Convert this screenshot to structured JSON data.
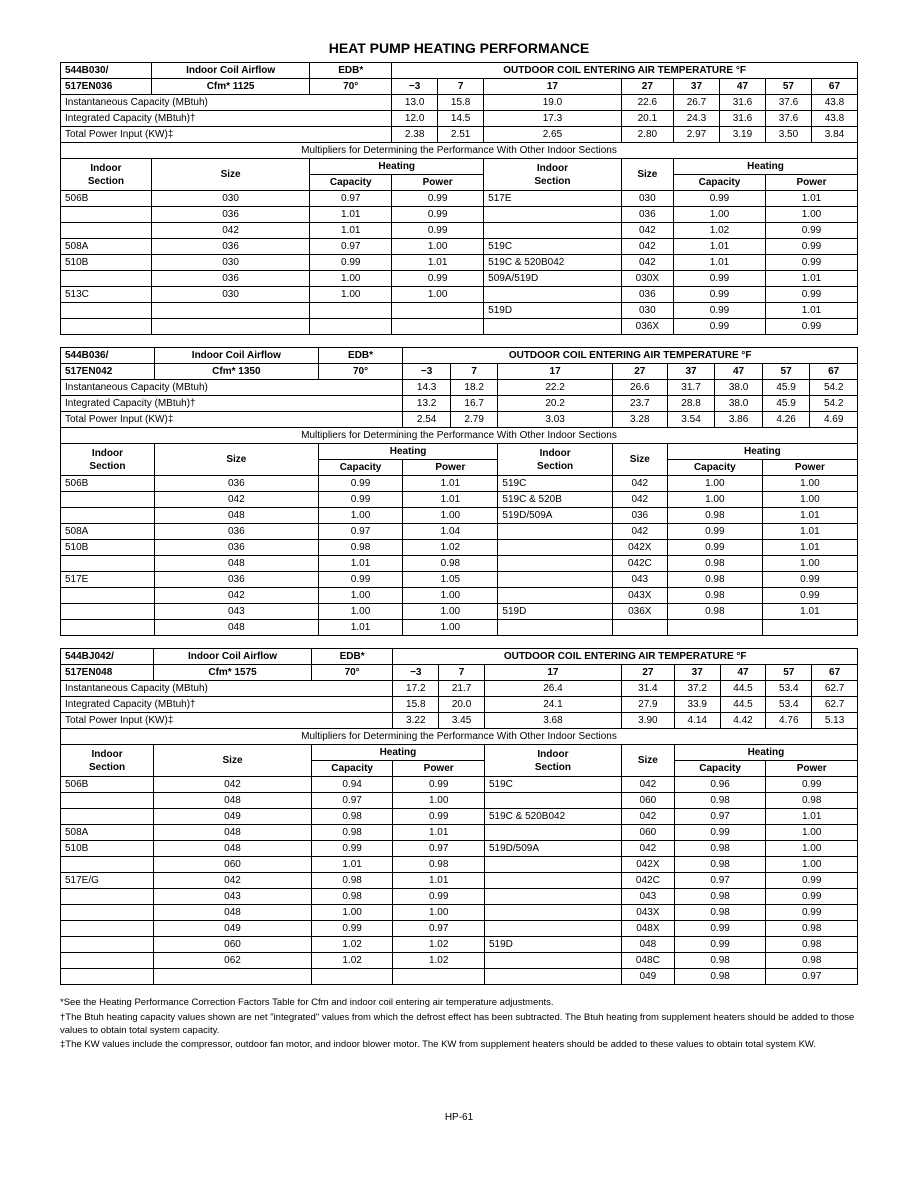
{
  "title": "HEAT PUMP HEATING PERFORMANCE",
  "pagenum": "HP-61",
  "footnotes": [
    "*See the Heating Performance Correction Factors Table for Cfm and indoor coil entering air temperature adjustments.",
    "†The Btuh heating capacity values shown are net \"integrated\" values from which the defrost effect has been subtracted. The Btuh heating from supplement heaters should be added to those values to obtain total system capacity.",
    "‡The KW values include the compressor, outdoor fan motor, and indoor blower motor. The KW from supplement heaters should be added to these values to obtain total system KW."
  ],
  "h": {
    "ica": "Indoor Coil Airflow",
    "edb": "EDB*",
    "oat": "OUTDOOR COIL ENTERING AIR TEMPERATURE °F",
    "temps": [
      "−3",
      "7",
      "17",
      "27",
      "37",
      "47",
      "57",
      "67"
    ],
    "inst": "Instantaneous Capacity (MBtuh)",
    "integ": "Integrated Capacity (MBtuh)†",
    "tpi": "Total Power Input (KW)‡",
    "mult": "Multipliers for Determining the Performance With Other Indoor Sections",
    "is": "Indoor",
    "sec": "Section",
    "size": "Size",
    "heat": "Heating",
    "cap": "Capacity",
    "pow": "Power",
    "deg": "70°"
  },
  "t1": {
    "model1": "544B030/",
    "model2": "517EN036",
    "cfm": "Cfm* 1125",
    "inst": [
      "13.0",
      "15.8",
      "19.0",
      "22.6",
      "26.7",
      "31.6",
      "37.6",
      "43.8"
    ],
    "integ": [
      "12.0",
      "14.5",
      "17.3",
      "20.1",
      "24.3",
      "31.6",
      "37.6",
      "43.8"
    ],
    "tpi": [
      "2.38",
      "2.51",
      "2.65",
      "2.80",
      "2.97",
      "3.19",
      "3.50",
      "3.84"
    ],
    "left": [
      [
        "506B",
        "030",
        "0.97",
        "0.99"
      ],
      [
        "",
        "036",
        "1.01",
        "0.99"
      ],
      [
        "",
        "042",
        "1.01",
        "0.99"
      ],
      [
        "508A",
        "036",
        "0.97",
        "1.00"
      ],
      [
        "510B",
        "030",
        "0.99",
        "1.01"
      ],
      [
        "",
        "036",
        "1.00",
        "0.99"
      ],
      [
        "513C",
        "030",
        "1.00",
        "1.00"
      ],
      [
        "",
        "",
        "",
        ""
      ]
    ],
    "right": [
      [
        "517E",
        "030",
        "0.99",
        "1.01"
      ],
      [
        "",
        "036",
        "1.00",
        "1.00"
      ],
      [
        "",
        "042",
        "1.02",
        "0.99"
      ],
      [
        "519C",
        "042",
        "1.01",
        "0.99"
      ],
      [
        "519C & 520B042",
        "042",
        "1.01",
        "0.99"
      ],
      [
        "509A/519D",
        "030X",
        "0.99",
        "1.01"
      ],
      [
        "",
        "036",
        "0.99",
        "0.99"
      ],
      [
        "519D",
        "030",
        "0.99",
        "1.01"
      ],
      [
        "",
        "036X",
        "0.99",
        "0.99"
      ]
    ]
  },
  "t2": {
    "model1": "544B036/",
    "model2": "517EN042",
    "cfm": "Cfm* 1350",
    "inst": [
      "14.3",
      "18.2",
      "22.2",
      "26.6",
      "31.7",
      "38.0",
      "45.9",
      "54.2"
    ],
    "integ": [
      "13.2",
      "16.7",
      "20.2",
      "23.7",
      "28.8",
      "38.0",
      "45.9",
      "54.2"
    ],
    "tpi": [
      "2.54",
      "2.79",
      "3.03",
      "3.28",
      "3.54",
      "3.86",
      "4.26",
      "4.69"
    ],
    "left": [
      [
        "506B",
        "036",
        "0.99",
        "1.01"
      ],
      [
        "",
        "042",
        "0.99",
        "1.01"
      ],
      [
        "",
        "048",
        "1.00",
        "1.00"
      ],
      [
        "508A",
        "036",
        "0.97",
        "1.04"
      ],
      [
        "510B",
        "036",
        "0.98",
        "1.02"
      ],
      [
        "",
        "048",
        "1.01",
        "0.98"
      ],
      [
        "517E",
        "036",
        "0.99",
        "1.05"
      ],
      [
        "",
        "042",
        "1.00",
        "1.00"
      ],
      [
        "",
        "043",
        "1.00",
        "1.00"
      ],
      [
        "",
        "048",
        "1.01",
        "1.00"
      ]
    ],
    "right": [
      [
        "519C",
        "042",
        "1.00",
        "1.00"
      ],
      [
        "519C & 520B",
        "042",
        "1.00",
        "1.00"
      ],
      [
        "519D/509A",
        "036",
        "0.98",
        "1.01"
      ],
      [
        "",
        "042",
        "0.99",
        "1.01"
      ],
      [
        "",
        "042X",
        "0.99",
        "1.01"
      ],
      [
        "",
        "042C",
        "0.98",
        "1.00"
      ],
      [
        "",
        "043",
        "0.98",
        "0.99"
      ],
      [
        "",
        "043X",
        "0.98",
        "0.99"
      ],
      [
        "519D",
        "036X",
        "0.98",
        "1.01"
      ]
    ]
  },
  "t3": {
    "model1": "544BJ042/",
    "model2": "517EN048",
    "cfm": "Cfm* 1575",
    "inst": [
      "17.2",
      "21.7",
      "26.4",
      "31.4",
      "37.2",
      "44.5",
      "53.4",
      "62.7"
    ],
    "integ": [
      "15.8",
      "20.0",
      "24.1",
      "27.9",
      "33.9",
      "44.5",
      "53.4",
      "62.7"
    ],
    "tpi": [
      "3.22",
      "3.45",
      "3.68",
      "3.90",
      "4.14",
      "4.42",
      "4.76",
      "5.13"
    ],
    "left": [
      [
        "506B",
        "042",
        "0.94",
        "0.99"
      ],
      [
        "",
        "048",
        "0.97",
        "1.00"
      ],
      [
        "",
        "049",
        "0.98",
        "0.99"
      ],
      [
        "508A",
        "048",
        "0.98",
        "1.01"
      ],
      [
        "510B",
        "048",
        "0.99",
        "0.97"
      ],
      [
        "",
        "060",
        "1.01",
        "0.98"
      ],
      [
        "517E/G",
        "042",
        "0.98",
        "1.01"
      ],
      [
        "",
        "043",
        "0.98",
        "0.99"
      ],
      [
        "",
        "048",
        "1.00",
        "1.00"
      ],
      [
        "",
        "049",
        "0.99",
        "0.97"
      ],
      [
        "",
        "060",
        "1.02",
        "1.02"
      ],
      [
        "",
        "062",
        "1.02",
        "1.02"
      ]
    ],
    "right": [
      [
        "519C",
        "042",
        "0.96",
        "0.99"
      ],
      [
        "",
        "060",
        "0.98",
        "0.98"
      ],
      [
        "519C & 520B042",
        "042",
        "0.97",
        "1.01"
      ],
      [
        "",
        "060",
        "0.99",
        "1.00"
      ],
      [
        "519D/509A",
        "042",
        "0.98",
        "1.00"
      ],
      [
        "",
        "042X",
        "0.98",
        "1.00"
      ],
      [
        "",
        "042C",
        "0.97",
        "0.99"
      ],
      [
        "",
        "043",
        "0.98",
        "0.99"
      ],
      [
        "",
        "043X",
        "0.98",
        "0.99"
      ],
      [
        "",
        "048X",
        "0.99",
        "0.98"
      ],
      [
        "519D",
        "048",
        "0.99",
        "0.98"
      ],
      [
        "",
        "048C",
        "0.98",
        "0.98"
      ],
      [
        "",
        "049",
        "0.98",
        "0.97"
      ]
    ]
  }
}
